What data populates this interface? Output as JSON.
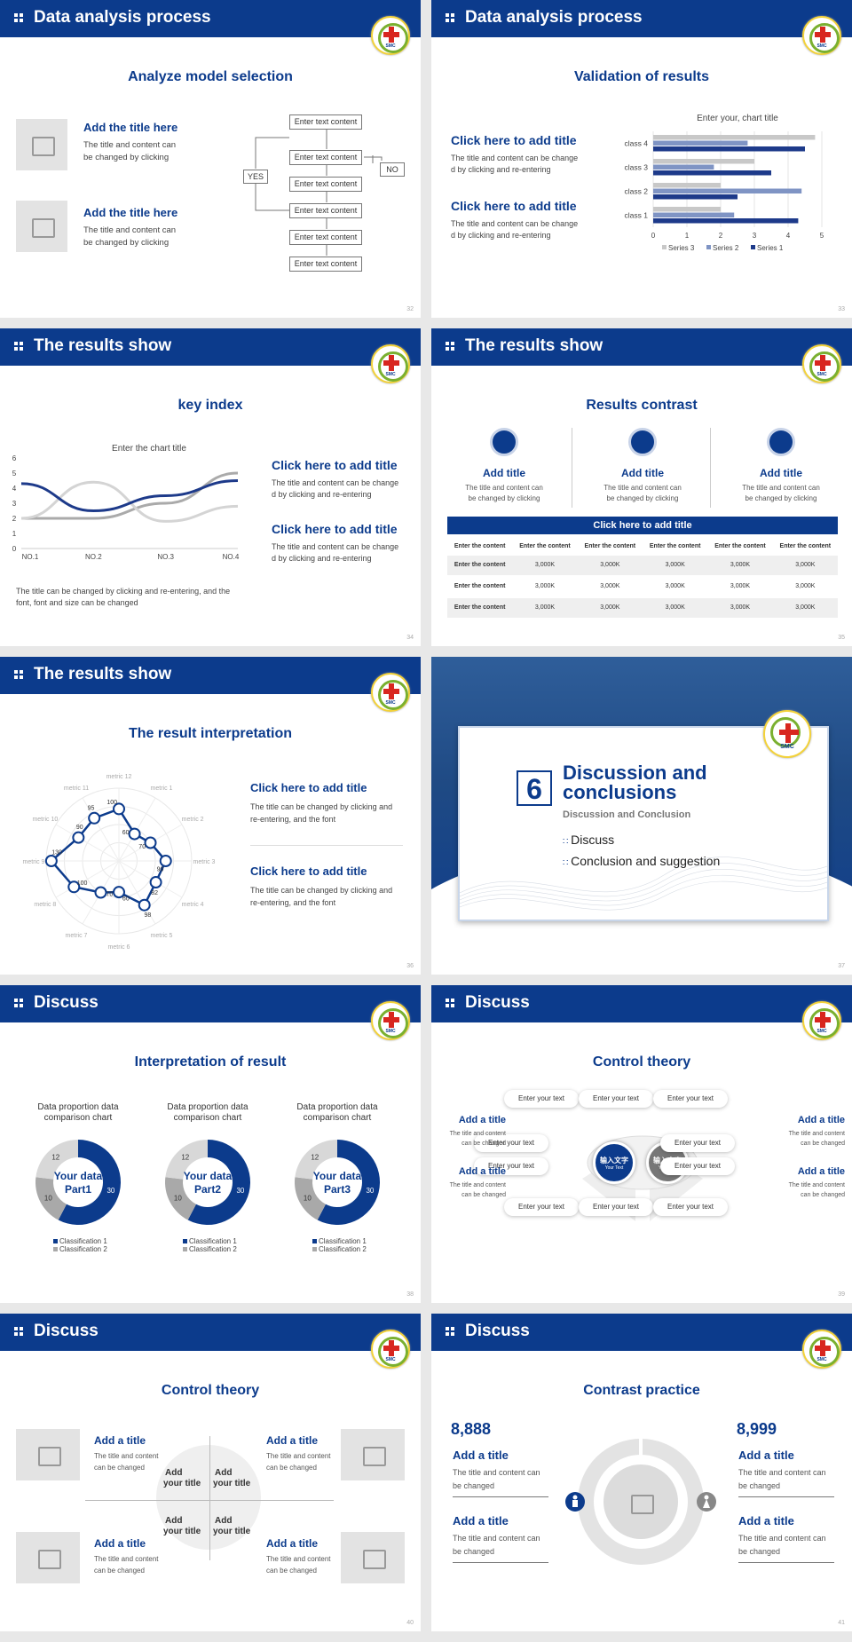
{
  "slides": [
    {
      "header": "Data analysis process",
      "title": "Analyze model selection",
      "page": "32",
      "items": [
        {
          "title": "Add the title here",
          "text1": "The title and content can",
          "text2": "be changed by clicking"
        },
        {
          "title": "Add the title here",
          "text1": "The title and content can",
          "text2": "be changed by clicking"
        }
      ],
      "flow": [
        "Enter text content",
        "Enter text content",
        "Enter text content",
        "Enter text content",
        "Enter text content",
        "Enter text content"
      ],
      "yes": "YES",
      "no": "NO"
    },
    {
      "header": "Data analysis process",
      "title": "Validation of results",
      "page": "33",
      "items": [
        {
          "title": "Click here to add title",
          "text1": "The title and content can be change",
          "text2": "d by clicking and re-entering"
        },
        {
          "title": "Click here to add title",
          "text1": "The title and content can be change",
          "text2": "d by clicking and re-entering"
        }
      ]
    },
    {
      "header": "The results show",
      "title": "key index",
      "page": "34",
      "items": [
        {
          "title": "Click here to add title",
          "text1": "The title and content can be change",
          "text2": "d by clicking and re-entering"
        },
        {
          "title": "Click here to add title",
          "text1": "The title and content can be change",
          "text2": "d by clicking and re-entering"
        }
      ],
      "note1": "The title can be changed by clicking and re-entering, and the",
      "note2": "font, font and size can be changed"
    },
    {
      "header": "The results show",
      "title": "Results contrast",
      "page": "35",
      "cards": [
        {
          "title": "Add title",
          "t1": "The title and content can",
          "t2": "be changed by clicking"
        },
        {
          "title": "Add title",
          "t1": "The title and content can",
          "t2": "be changed by clicking"
        },
        {
          "title": "Add title",
          "t1": "The title and content can",
          "t2": "be changed by clicking"
        }
      ],
      "table_title": "Click here to add title",
      "table_header": [
        "Enter the content",
        "Enter the content",
        "Enter the content",
        "Enter the content",
        "Enter the content",
        "Enter the content"
      ],
      "table_rows": [
        [
          "Enter the content",
          "3,000K",
          "3,000K",
          "3,000K",
          "3,000K",
          "3,000K"
        ],
        [
          "Enter the content",
          "3,000K",
          "3,000K",
          "3,000K",
          "3,000K",
          "3,000K"
        ],
        [
          "Enter the content",
          "3,000K",
          "3,000K",
          "3,000K",
          "3,000K",
          "3,000K"
        ]
      ]
    },
    {
      "header": "The results show",
      "title": "The result interpretation",
      "page": "36",
      "items": [
        {
          "title": "Click here to add  title",
          "text1": "The title can be changed by clicking and",
          "text2": "re-entering, and the font"
        },
        {
          "title": "Click here to add  title",
          "text1": "The title can be changed by clicking and",
          "text2": "re-entering, and the font"
        }
      ]
    },
    {
      "page": "37",
      "num": "6",
      "title1": "Discussion and",
      "title2": "conclusions",
      "sub": "Discussion and Conclusion",
      "b1": "Discuss",
      "b2": "Conclusion and suggestion"
    },
    {
      "header": "Discuss",
      "title": "Interpretation of result",
      "page": "38",
      "donuts": [
        {
          "t1": "Data proportion data",
          "t2": "comparison chart",
          "c1": "Your data",
          "c2": "Part1"
        },
        {
          "t1": "Data proportion data",
          "t2": "comparison chart",
          "c1": "Your data",
          "c2": "Part2"
        },
        {
          "t1": "Data proportion data",
          "t2": "comparison chart",
          "c1": "Your data",
          "c2": "Part3"
        }
      ],
      "legend": [
        "Classification 1",
        "Classification 2"
      ]
    },
    {
      "header": "Discuss",
      "title": "Control theory",
      "page": "39",
      "pill": "Enter your text",
      "c1a": "输入文字",
      "c1b": "Your Text",
      "c2a": "输入文字",
      "c2b": "Your Text",
      "side": {
        "title": "Add a title",
        "t1": "The title and content",
        "t2": "can be changed"
      }
    },
    {
      "header": "Discuss",
      "title": "Control theory",
      "page": "40",
      "item": {
        "title": "Add a title",
        "t1": "The title and content",
        "t2": "can be changed"
      },
      "q": [
        "Add",
        "your title"
      ]
    },
    {
      "header": "Discuss",
      "title": "Contrast practice",
      "page": "41",
      "n1": "8,888",
      "n2": "8,999",
      "item": {
        "title": "Add a title",
        "t1": "The title and content can",
        "t2": "be changed"
      }
    }
  ],
  "chart_data": [
    {
      "type": "bar",
      "title": "Enter your, chart title",
      "categories": [
        "class 1",
        "class 2",
        "class 3",
        "class 4"
      ],
      "series": [
        {
          "name": "Series 3",
          "values": [
            2,
            2,
            3,
            4.8
          ]
        },
        {
          "name": "Series 2",
          "values": [
            2.4,
            4.4,
            1.8,
            2.8
          ]
        },
        {
          "name": "Series 1",
          "values": [
            4.3,
            2.5,
            3.5,
            4.5
          ]
        }
      ],
      "xlim": [
        0,
        5
      ],
      "ticks": [
        "0",
        "1",
        "2",
        "3",
        "4",
        "5"
      ],
      "colors": [
        "#c8c8c8",
        "#7f94c4",
        "#1d3a8a"
      ]
    },
    {
      "type": "line",
      "title": "Enter the chart title",
      "categories": [
        "NO.1",
        "NO.2",
        "NO.3",
        "NO.4"
      ],
      "ticks": [
        "0",
        "1",
        "2",
        "3",
        "4",
        "5",
        "6"
      ],
      "ylim": [
        0,
        6
      ],
      "series": [
        {
          "values": [
            4.3,
            2.5,
            3.5,
            4.5
          ]
        },
        {
          "values": [
            2,
            4.4,
            1.8,
            2.8
          ]
        },
        {
          "values": [
            2,
            2,
            3,
            5
          ]
        }
      ],
      "colors": [
        "#1d3a8a",
        "#d4d4d4",
        "#aaaaaa"
      ]
    },
    {
      "type": "radar",
      "categories": [
        "metric 1",
        "metric 2",
        "metric 3",
        "metric 4",
        "metric 5",
        "metric 6",
        "metric 7",
        "metric 8",
        "metric 9",
        "metric 10",
        "metric 11",
        "metric 12"
      ],
      "values": [
        60,
        70,
        90,
        82,
        98,
        60,
        70,
        100,
        130,
        90,
        95,
        100
      ]
    },
    {
      "type": "pie",
      "values": [
        30,
        10,
        12
      ],
      "labels": [
        "30",
        "10",
        "12"
      ],
      "legend": [
        "Classification 1",
        "Classification 2"
      ]
    }
  ],
  "colors": {
    "brand": "#0c3b8c",
    "grey": "#e3e3e3"
  }
}
